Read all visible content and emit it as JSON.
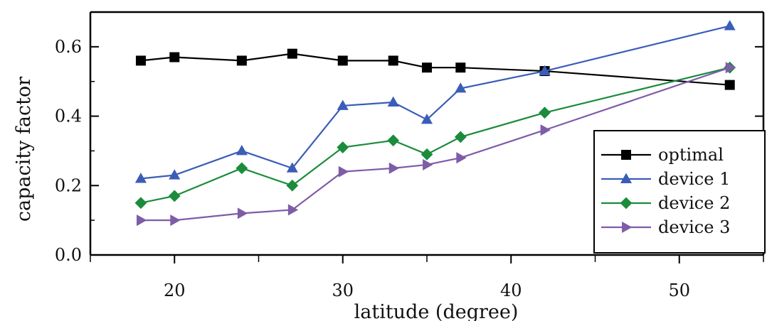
{
  "chart_data": {
    "type": "line",
    "title": "",
    "xlabel": "latitude (degree)",
    "ylabel": "capacity factor",
    "xlim": [
      15,
      55
    ],
    "ylim": [
      0,
      0.7
    ],
    "x_ticks": [
      20,
      30,
      40,
      50
    ],
    "x_tick_labels": [
      "20",
      "30",
      "40",
      "50"
    ],
    "y_ticks": [
      0,
      0.2,
      0.4,
      0.6
    ],
    "y_tick_labels": [
      "0.0",
      "0.2",
      "0.4",
      "0.6"
    ],
    "grid": false,
    "legend_position": "bottom-right",
    "x": [
      18,
      20,
      24,
      27,
      30,
      33,
      35,
      37,
      42,
      53
    ],
    "series": [
      {
        "name": "optimal",
        "color": "#000000",
        "marker": "square",
        "values": [
          0.56,
          0.57,
          0.56,
          0.58,
          0.56,
          0.56,
          0.54,
          0.54,
          0.53,
          0.49
        ]
      },
      {
        "name": "device 1",
        "color": "#3a5db8",
        "marker": "triangle-up",
        "values": [
          0.22,
          0.23,
          0.3,
          0.25,
          0.43,
          0.44,
          0.39,
          0.48,
          0.53,
          0.66
        ]
      },
      {
        "name": "device 2",
        "color": "#1a8c3c",
        "marker": "diamond",
        "values": [
          0.15,
          0.17,
          0.25,
          0.2,
          0.31,
          0.33,
          0.29,
          0.34,
          0.41,
          0.54
        ]
      },
      {
        "name": "device 3",
        "color": "#7e5ca8",
        "marker": "triangle-right",
        "values": [
          0.1,
          0.1,
          0.12,
          0.13,
          0.24,
          0.25,
          0.26,
          0.28,
          0.36,
          0.54
        ]
      }
    ]
  }
}
